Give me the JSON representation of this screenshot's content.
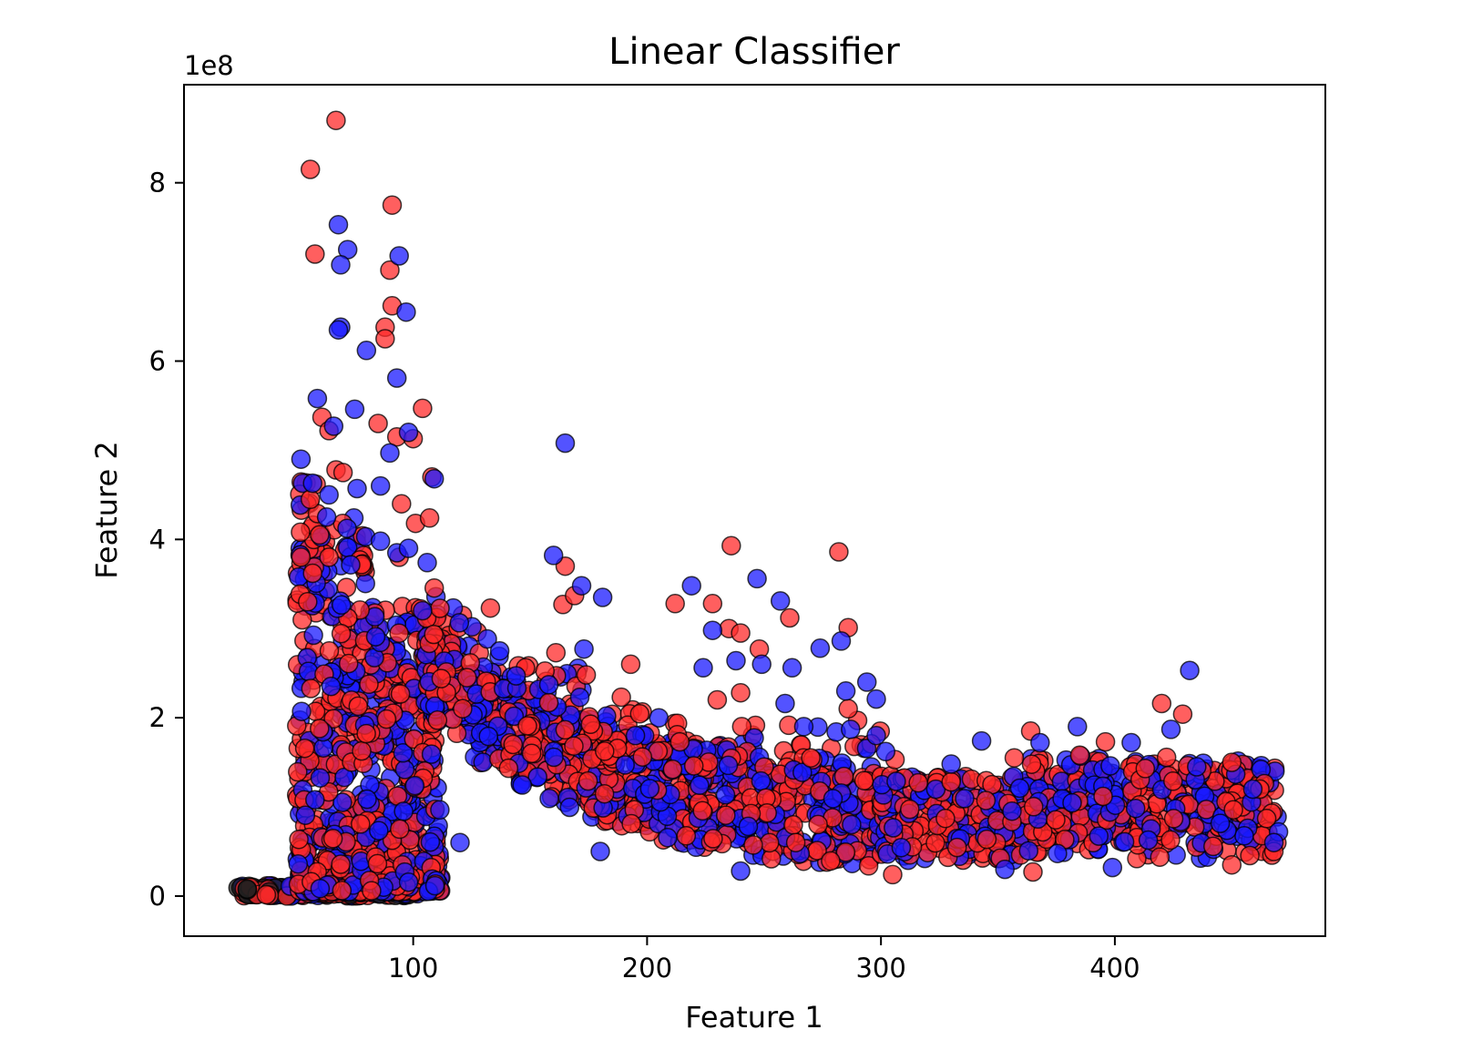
{
  "chart_data": {
    "type": "scatter",
    "title": "Linear Classifier",
    "xlabel": "Feature 1",
    "ylabel": "Feature 2",
    "y_offset_label": "1e8",
    "xlim": [
      2,
      490
    ],
    "ylim": [
      -0.45,
      9.1
    ],
    "x_ticks": [
      100,
      200,
      300,
      400
    ],
    "y_ticks": [
      0,
      2,
      4,
      6,
      8
    ],
    "grid": false,
    "legend": "none",
    "colors": {
      "class_a": "#ff2a2a",
      "class_b": "#1a1aff",
      "edge": "#000000"
    },
    "point_alpha": 0.75,
    "series": [
      {
        "class": "class_a",
        "points": [
          [
            67,
            8.7
          ],
          [
            56,
            8.15
          ],
          [
            91,
            7.75
          ],
          [
            58,
            7.2
          ],
          [
            90,
            7.02
          ],
          [
            91,
            6.62
          ],
          [
            88,
            6.38
          ],
          [
            88,
            6.25
          ],
          [
            61,
            5.37
          ],
          [
            85,
            5.3
          ],
          [
            104,
            5.47
          ],
          [
            93,
            5.15
          ],
          [
            100,
            5.13
          ],
          [
            64,
            5.22
          ],
          [
            67,
            4.78
          ],
          [
            70,
            4.75
          ],
          [
            56,
            4.45
          ],
          [
            108,
            4.7
          ],
          [
            95,
            4.4
          ],
          [
            101,
            4.18
          ],
          [
            107,
            4.24
          ],
          [
            60,
            4.05
          ],
          [
            64,
            3.8
          ],
          [
            52,
            3.8
          ],
          [
            57,
            3.62
          ],
          [
            94,
            3.8
          ],
          [
            165,
            3.7
          ],
          [
            161,
            2.73
          ],
          [
            236,
            3.93
          ],
          [
            282,
            3.86
          ],
          [
            133,
            3.23
          ],
          [
            164,
            3.27
          ],
          [
            169,
            3.37
          ],
          [
            212,
            3.28
          ],
          [
            228,
            3.28
          ],
          [
            261,
            3.12
          ],
          [
            235,
            3.0
          ],
          [
            286,
            3.01
          ],
          [
            240,
            2.95
          ],
          [
            248,
            2.77
          ],
          [
            174,
            2.48
          ],
          [
            193,
            2.6
          ],
          [
            230,
            2.2
          ],
          [
            240,
            2.28
          ],
          [
            290,
            1.97
          ],
          [
            286,
            2.1
          ],
          [
            148,
            2.56
          ],
          [
            158,
            2.17
          ],
          [
            189,
            2.23
          ],
          [
            123,
            2.45
          ],
          [
            112,
            2.44
          ],
          [
            214,
            1.73
          ],
          [
            220,
            1.46
          ],
          [
            198,
            1.56
          ],
          [
            364,
            1.85
          ],
          [
            357,
            1.55
          ],
          [
            420,
            2.16
          ],
          [
            429,
            2.04
          ],
          [
            385,
            1.58
          ],
          [
            396,
            1.73
          ],
          [
            413,
            1.43
          ],
          [
            450,
            1.5
          ],
          [
            462,
            1.2
          ],
          [
            330,
            1.28
          ],
          [
            305,
            0.24
          ],
          [
            365,
            0.27
          ],
          [
            270,
            1.55
          ],
          [
            306,
            1.53
          ],
          [
            316,
            1.27
          ],
          [
            450,
            0.35
          ],
          [
            468,
            0.5
          ]
        ]
      },
      {
        "class": "class_b",
        "points": [
          [
            68,
            7.53
          ],
          [
            72,
            7.25
          ],
          [
            94,
            7.18
          ],
          [
            69,
            7.08
          ],
          [
            69,
            6.38
          ],
          [
            68,
            6.35
          ],
          [
            97,
            6.55
          ],
          [
            80,
            6.12
          ],
          [
            93,
            5.81
          ],
          [
            59,
            5.58
          ],
          [
            75,
            5.46
          ],
          [
            98,
            5.2
          ],
          [
            66,
            5.27
          ],
          [
            52,
            4.9
          ],
          [
            90,
            4.97
          ],
          [
            109,
            4.68
          ],
          [
            57,
            4.63
          ],
          [
            64,
            4.5
          ],
          [
            76,
            4.57
          ],
          [
            86,
            4.6
          ],
          [
            63,
            4.25
          ],
          [
            86,
            3.98
          ],
          [
            165,
            5.08
          ],
          [
            160,
            3.82
          ],
          [
            93,
            3.85
          ],
          [
            98,
            3.9
          ],
          [
            106,
            3.74
          ],
          [
            104,
            3.2
          ],
          [
            172,
            3.48
          ],
          [
            181,
            3.35
          ],
          [
            247,
            3.56
          ],
          [
            257,
            3.31
          ],
          [
            219,
            3.48
          ],
          [
            137,
            2.75
          ],
          [
            144,
            2.47
          ],
          [
            158,
            2.37
          ],
          [
            173,
            2.77
          ],
          [
            228,
            2.98
          ],
          [
            262,
            2.56
          ],
          [
            274,
            2.78
          ],
          [
            283,
            2.86
          ],
          [
            224,
            2.56
          ],
          [
            238,
            2.64
          ],
          [
            249,
            2.6
          ],
          [
            294,
            2.4
          ],
          [
            298,
            2.21
          ],
          [
            285,
            2.3
          ],
          [
            259,
            2.16
          ],
          [
            287,
            1.87
          ],
          [
            298,
            1.8
          ],
          [
            432,
            2.53
          ],
          [
            424,
            1.87
          ],
          [
            407,
            1.72
          ],
          [
            384,
            1.9
          ],
          [
            368,
            1.72
          ],
          [
            343,
            1.74
          ],
          [
            330,
            1.48
          ],
          [
            302,
            1.62
          ],
          [
            267,
            1.9
          ],
          [
            195,
            1.8
          ],
          [
            399,
            0.32
          ],
          [
            435,
            1.45
          ],
          [
            459,
            1.2
          ],
          [
            470,
            0.72
          ],
          [
            468,
            0.6
          ],
          [
            240,
            0.28
          ],
          [
            353,
            0.3
          ],
          [
            180,
            0.5
          ],
          [
            120,
            0.6
          ],
          [
            58,
            1.08
          ]
        ]
      }
    ]
  }
}
